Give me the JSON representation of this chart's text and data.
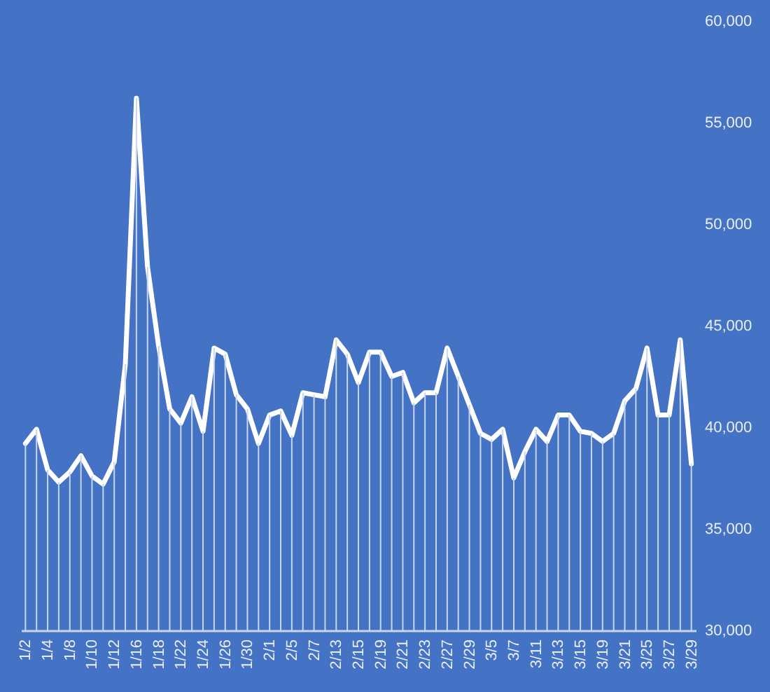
{
  "chart_data": {
    "type": "line",
    "categories": [
      "1/2",
      null,
      "1/4",
      null,
      "1/8",
      null,
      "1/10",
      null,
      "1/12",
      null,
      "1/16",
      null,
      "1/18",
      null,
      "1/22",
      null,
      "1/24",
      null,
      "1/26",
      null,
      "1/30",
      null,
      "2/1",
      null,
      "2/5",
      null,
      "2/7",
      null,
      "2/13",
      null,
      "2/15",
      null,
      "2/19",
      null,
      "2/21",
      null,
      "2/23",
      null,
      "2/27",
      null,
      "2/29",
      null,
      "3/5",
      null,
      "3/7",
      null,
      "3/11",
      null,
      "3/13",
      null,
      "3/15",
      null,
      "3/19",
      null,
      "3/21",
      null,
      "3/25",
      null,
      "3/27",
      null,
      "3/29"
    ],
    "series": [
      {
        "type": "bar",
        "color": "#c9d6ee",
        "values": [
          39200,
          39900,
          37900,
          37300,
          37800,
          38600,
          37600,
          37200,
          38300,
          43100,
          56200,
          47900,
          44000,
          40900,
          40200,
          41500,
          39800,
          43900,
          43600,
          41600,
          40900,
          39200,
          40600,
          40800,
          39600,
          41700,
          41600,
          41500,
          44300,
          43600,
          42200,
          43700,
          43700,
          42500,
          42700,
          41200,
          41700,
          41700,
          43900,
          42500,
          41100,
          39700,
          39400,
          39900,
          37500,
          38800,
          39900,
          39300,
          40600,
          40600,
          39800,
          39700,
          39300,
          39700,
          41300,
          41900,
          43900,
          40600,
          40600,
          44300,
          38200
        ]
      },
      {
        "color": "#ffffff",
        "values": [
          39200,
          39900,
          37900,
          37300,
          37800,
          38600,
          37600,
          37200,
          38300,
          43100,
          56200,
          47900,
          44000,
          40900,
          40200,
          41500,
          39800,
          43900,
          43600,
          41600,
          40900,
          39200,
          40600,
          40800,
          39600,
          41700,
          41600,
          41500,
          44300,
          43600,
          42200,
          43700,
          43700,
          42500,
          42700,
          41200,
          41700,
          41700,
          43900,
          42500,
          41100,
          39700,
          39400,
          39900,
          37500,
          38800,
          39900,
          39300,
          40600,
          40600,
          39800,
          39700,
          39300,
          39700,
          41300,
          41900,
          43900,
          40600,
          40600,
          44300,
          38200
        ]
      }
    ],
    "ylim": [
      30000,
      60000
    ],
    "yticks": [
      {
        "value": 30000,
        "label": "30,000"
      },
      {
        "value": 35000,
        "label": "35,000"
      },
      {
        "value": 40000,
        "label": "40,000"
      },
      {
        "value": 45000,
        "label": "45,000"
      },
      {
        "value": 50000,
        "label": "50,000"
      },
      {
        "value": 55000,
        "label": "55,000"
      },
      {
        "value": 60000,
        "label": "60,000"
      }
    ],
    "marker": "none",
    "line_style": "solid"
  }
}
